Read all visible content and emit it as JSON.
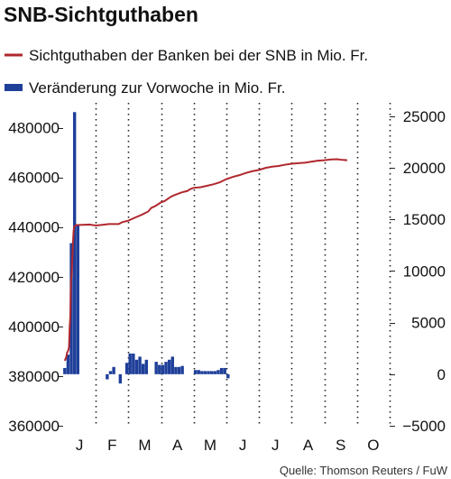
{
  "chart_data": {
    "type": "bar+line",
    "title": "SNB-Sichtguthaben",
    "source": "Quelle: Thomson Reuters / FuW",
    "legend": [
      {
        "label": "Sichtguthaben der Banken bei der SNB in Mio. Fr.",
        "kind": "line",
        "color": "#b0282e"
      },
      {
        "label": "Veränderung zur Vorwoche in Mio. Fr.",
        "kind": "bar",
        "color": "#1f3f99"
      }
    ],
    "months": [
      "J",
      "F",
      "M",
      "A",
      "M",
      "J",
      "J",
      "A",
      "S",
      "O"
    ],
    "left_axis": {
      "min": 360000,
      "max": 490000,
      "ticks": [
        360000,
        380000,
        400000,
        420000,
        440000,
        460000,
        480000
      ]
    },
    "right_axis": {
      "min": -5000,
      "max": 26300,
      "ticks": [
        -5000,
        0,
        5000,
        10000,
        15000,
        20000,
        25000
      ]
    },
    "series": [
      {
        "name": "Sichtguthaben der Banken bei der SNB in Mio. Fr.",
        "axis": "left",
        "x": [
          0.05,
          0.1,
          0.12,
          0.14,
          0.16,
          0.18,
          0.2,
          0.22,
          0.24,
          0.26,
          0.28,
          0.3,
          0.32,
          0.34,
          0.4,
          0.6,
          0.8,
          1.0,
          1.2,
          1.4,
          1.5,
          1.7,
          1.8,
          2.0,
          2.2,
          2.4,
          2.6,
          2.7,
          2.8,
          2.9,
          3.0,
          3.1,
          3.2,
          3.3,
          3.4,
          3.5,
          3.6,
          3.7,
          3.8,
          3.9,
          4.0,
          4.2,
          4.4,
          4.6,
          4.8,
          5.0,
          5.2,
          5.4,
          5.6,
          5.8,
          6.0,
          6.2,
          6.4,
          6.6,
          6.8,
          7.0,
          7.2,
          7.4,
          7.6,
          7.8,
          8.0,
          8.2,
          8.4,
          8.5,
          8.7
        ],
        "values": [
          386200,
          387800,
          389500,
          389800,
          390500,
          391700,
          399700,
          404100,
          418900,
          420000,
          427300,
          433500,
          438200,
          440200,
          440800,
          440900,
          441000,
          440600,
          440900,
          441200,
          441200,
          441200,
          441900,
          442600,
          443800,
          444900,
          446200,
          447700,
          448300,
          449100,
          450000,
          450400,
          451300,
          452200,
          452800,
          453300,
          453800,
          454200,
          454500,
          455300,
          455800,
          456000,
          456600,
          457200,
          458000,
          459300,
          460200,
          460900,
          461800,
          462500,
          463000,
          463800,
          464300,
          464600,
          465100,
          465500,
          465700,
          465900,
          466300,
          466700,
          466900,
          467200,
          467300,
          467100,
          466900
        ]
      },
      {
        "name": "Veränderung zur Vorwoche in Mio. Fr.",
        "axis": "right",
        "x": [
          0.05,
          0.15,
          0.25,
          0.35,
          0.45,
          0.55,
          0.65,
          1.05,
          1.15,
          1.25,
          1.35,
          1.45,
          1.55,
          1.65,
          1.75,
          1.85,
          1.95,
          2.05,
          2.15,
          2.25,
          2.35,
          2.45,
          2.55,
          2.65,
          2.75,
          2.85,
          2.95,
          3.05,
          3.15,
          3.25,
          3.35,
          3.45,
          3.55,
          3.65,
          3.75,
          3.85,
          3.95,
          4.05,
          4.15,
          4.25,
          4.35,
          4.45,
          4.55,
          4.65,
          4.75,
          4.85,
          4.95,
          5.05,
          5.15,
          5.25,
          5.35,
          5.45,
          5.55,
          5.65,
          5.75,
          5.85,
          5.95,
          6.05,
          6.15,
          6.25,
          6.35,
          6.45,
          6.55,
          6.65,
          6.75,
          6.85,
          6.95,
          7.05,
          7.15,
          7.25,
          7.35,
          7.45,
          7.55,
          7.65
        ],
        "values": [
          600,
          1900,
          12700,
          25400,
          14400,
          0,
          0,
          0,
          0,
          0,
          -500,
          300,
          700,
          0,
          -900,
          0,
          1100,
          2000,
          2000,
          1400,
          1700,
          1000,
          1400,
          0,
          0,
          1200,
          900,
          900,
          1200,
          1400,
          1700,
          700,
          700,
          800,
          0,
          0,
          0,
          400,
          400,
          300,
          300,
          300,
          300,
          300,
          400,
          600,
          600,
          -400,
          0,
          0,
          0,
          0,
          0,
          0,
          0,
          0,
          0,
          0,
          0,
          0,
          0,
          0,
          0,
          0,
          0,
          0,
          0,
          0,
          0,
          0,
          0,
          0,
          0,
          0
        ]
      }
    ]
  }
}
